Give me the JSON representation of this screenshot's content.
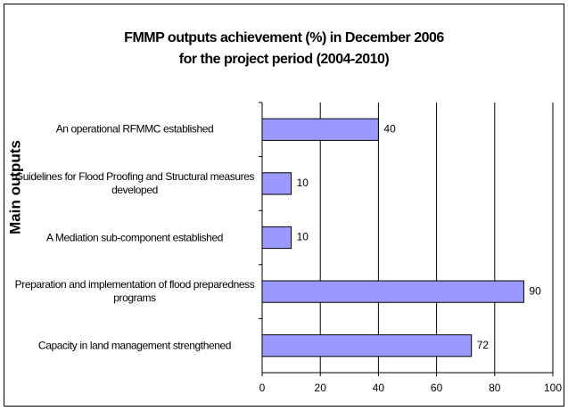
{
  "chart_data": {
    "type": "bar",
    "orientation": "horizontal",
    "title": [
      "FMMP outputs achievement (%) in December 2006",
      "for the project period (2004-2010)"
    ],
    "y_label": "Main outputs",
    "categories": [
      "An operational RFMMC established",
      "Guidelines for Flood Proofing and Structural measures developed",
      "A Mediation sub-component established",
      "Preparation and implementation of flood preparedness programs",
      "Capacity in land management strengthened"
    ],
    "values": [
      40,
      10,
      10,
      90,
      72
    ],
    "color": "#9999ff",
    "xlim": [
      0,
      100
    ],
    "xticks": [
      0,
      20,
      40,
      60,
      80,
      100
    ],
    "grid": true
  }
}
